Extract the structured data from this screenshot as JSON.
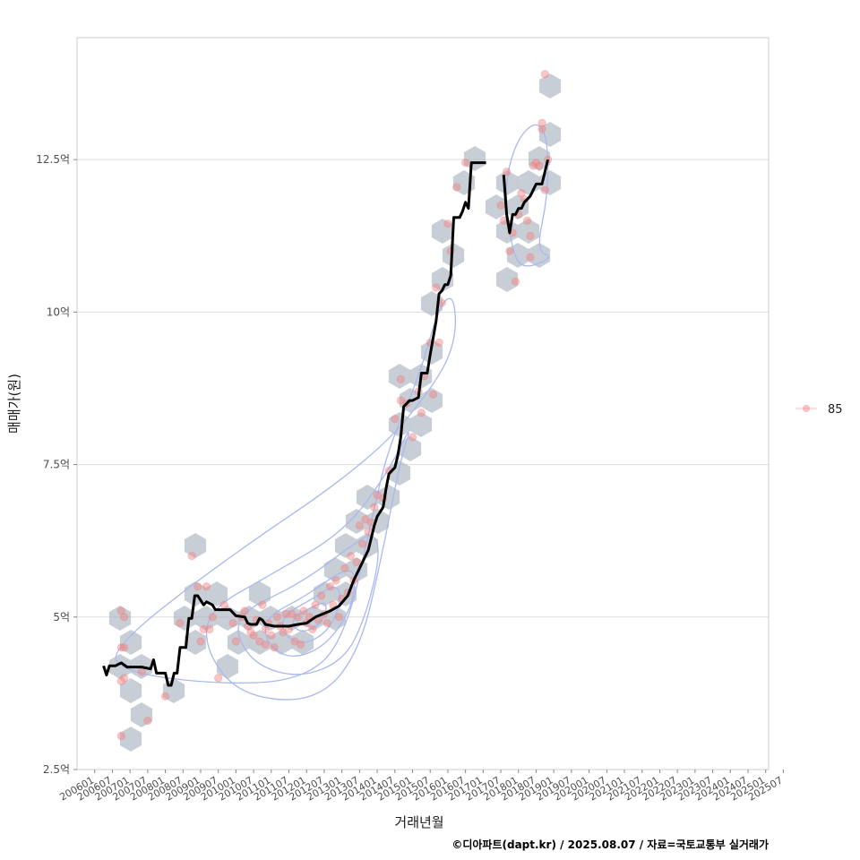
{
  "chart_data": {
    "type": "scatter",
    "xlabel": "거래년월",
    "ylabel": "매매가(원)",
    "caption": "©디아파트(dapt.kr) / 2025.08.07 / 자료=국토교통부 실거래가",
    "y_unit": "억원",
    "ylim": [
      2.5,
      14.5
    ],
    "xlim_months": [
      -6,
      229
    ],
    "y_ticks": [
      {
        "value": 2.5,
        "label": "2.5억"
      },
      {
        "value": 5,
        "label": "5억"
      },
      {
        "value": 7.5,
        "label": "7.5억"
      },
      {
        "value": 10,
        "label": "10억"
      },
      {
        "value": 12.5,
        "label": "12.5억"
      }
    ],
    "x_ticks": [
      {
        "month": 0,
        "label": "200601"
      },
      {
        "month": 6,
        "label": "200607"
      },
      {
        "month": 12,
        "label": "200701"
      },
      {
        "month": 18,
        "label": "200707"
      },
      {
        "month": 24,
        "label": "200801"
      },
      {
        "month": 30,
        "label": "200807"
      },
      {
        "month": 36,
        "label": "200901"
      },
      {
        "month": 42,
        "label": "200907"
      },
      {
        "month": 48,
        "label": "201001"
      },
      {
        "month": 54,
        "label": "201007"
      },
      {
        "month": 60,
        "label": "201101"
      },
      {
        "month": 66,
        "label": "201107"
      },
      {
        "month": 72,
        "label": "201201"
      },
      {
        "month": 78,
        "label": "201207"
      },
      {
        "month": 84,
        "label": "201301"
      },
      {
        "month": 90,
        "label": "201307"
      },
      {
        "month": 96,
        "label": "201401"
      },
      {
        "month": 102,
        "label": "201407"
      },
      {
        "month": 108,
        "label": "201501"
      },
      {
        "month": 114,
        "label": "201507"
      },
      {
        "month": 120,
        "label": "201601"
      },
      {
        "month": 126,
        "label": "201607"
      },
      {
        "month": 132,
        "label": "201701"
      },
      {
        "month": 138,
        "label": "201707"
      },
      {
        "month": 144,
        "label": "201801"
      },
      {
        "month": 150,
        "label": "201807"
      },
      {
        "month": 156,
        "label": "201901"
      },
      {
        "month": 162,
        "label": "201907"
      },
      {
        "month": 168,
        "label": "202001"
      },
      {
        "month": 174,
        "label": "202007"
      },
      {
        "month": 180,
        "label": "202101"
      },
      {
        "month": 186,
        "label": "202107"
      },
      {
        "month": 192,
        "label": "202201"
      },
      {
        "month": 198,
        "label": "202207"
      },
      {
        "month": 204,
        "label": "202301"
      },
      {
        "month": 210,
        "label": "202307"
      },
      {
        "month": 216,
        "label": "202401"
      },
      {
        "month": 222,
        "label": "202407"
      },
      {
        "month": 228,
        "label": "202501"
      },
      {
        "month": 234,
        "label": "202507"
      }
    ],
    "legend": [
      {
        "name": "85",
        "color": "#f08080"
      }
    ],
    "colors": {
      "point": "#f08080",
      "hex": "#aab3be",
      "contour": "#a9b8f0",
      "trend": "#000000",
      "grid": "#dddddd",
      "frame": "#cccccc"
    },
    "series": [
      {
        "name": "85",
        "points": [
          [
            9,
            5.1
          ],
          [
            9,
            4.5
          ],
          [
            9,
            3.95
          ],
          [
            9,
            3.05
          ],
          [
            10,
            4.5
          ],
          [
            10,
            5.0
          ],
          [
            10,
            4.0
          ],
          [
            16,
            4.1
          ],
          [
            18,
            3.3
          ],
          [
            24,
            3.7
          ],
          [
            29,
            4.9
          ],
          [
            33,
            6.0
          ],
          [
            35,
            5.5
          ],
          [
            36,
            4.6
          ],
          [
            37,
            4.8
          ],
          [
            38,
            5.5
          ],
          [
            39,
            4.8
          ],
          [
            40,
            5.0
          ],
          [
            42,
            4.0
          ],
          [
            44,
            5.2
          ],
          [
            47,
            4.9
          ],
          [
            48,
            4.6
          ],
          [
            50,
            5.0
          ],
          [
            51,
            5.1
          ],
          [
            52,
            4.85
          ],
          [
            53,
            4.75
          ],
          [
            54,
            4.7
          ],
          [
            55,
            4.95
          ],
          [
            56,
            4.6
          ],
          [
            57,
            5.2
          ],
          [
            58,
            4.8
          ],
          [
            58,
            4.55
          ],
          [
            59,
            4.9
          ],
          [
            60,
            4.7
          ],
          [
            61,
            4.5
          ],
          [
            62,
            5.0
          ],
          [
            63,
            4.85
          ],
          [
            64,
            4.75
          ],
          [
            65,
            5.05
          ],
          [
            66,
            4.8
          ],
          [
            67,
            5.05
          ],
          [
            68,
            4.6
          ],
          [
            69,
            5.0
          ],
          [
            70,
            4.55
          ],
          [
            71,
            5.1
          ],
          [
            72,
            4.9
          ],
          [
            73,
            5.0
          ],
          [
            74,
            4.8
          ],
          [
            75,
            5.2
          ],
          [
            76,
            4.95
          ],
          [
            77,
            5.35
          ],
          [
            78,
            5.05
          ],
          [
            79,
            4.9
          ],
          [
            80,
            5.5
          ],
          [
            81,
            5.2
          ],
          [
            82,
            5.6
          ],
          [
            83,
            5.0
          ],
          [
            84,
            5.3
          ],
          [
            85,
            5.8
          ],
          [
            86,
            5.4
          ],
          [
            87,
            6.0
          ],
          [
            88,
            5.6
          ],
          [
            89,
            5.9
          ],
          [
            90,
            6.5
          ],
          [
            91,
            6.2
          ],
          [
            92,
            6.6
          ],
          [
            93,
            6.4
          ],
          [
            94,
            6.55
          ],
          [
            95,
            6.8
          ],
          [
            96,
            7.0
          ],
          [
            98,
            6.95
          ],
          [
            100,
            7.4
          ],
          [
            102,
            8.25
          ],
          [
            104,
            8.9
          ],
          [
            104,
            8.55
          ],
          [
            106,
            8.5
          ],
          [
            108,
            7.95
          ],
          [
            110,
            8.7
          ],
          [
            111,
            8.35
          ],
          [
            112,
            8.95
          ],
          [
            114,
            9.5
          ],
          [
            115,
            8.65
          ],
          [
            116,
            10.4
          ],
          [
            117,
            9.5
          ],
          [
            118,
            10.15
          ],
          [
            120,
            11.45
          ],
          [
            121,
            11.0
          ],
          [
            123,
            12.05
          ],
          [
            126,
            12.45
          ],
          [
            138,
            11.75
          ],
          [
            139,
            11.5
          ],
          [
            140,
            12.3
          ],
          [
            141,
            11.0
          ],
          [
            142,
            11.3
          ],
          [
            143,
            10.5
          ],
          [
            144,
            11.6
          ],
          [
            145,
            11.95
          ],
          [
            146,
            11.85
          ],
          [
            147,
            11.5
          ],
          [
            148,
            10.9
          ],
          [
            148,
            11.25
          ],
          [
            149,
            12.4
          ],
          [
            150,
            12.45
          ],
          [
            151,
            12.4
          ],
          [
            152,
            13.1
          ],
          [
            152,
            13.0
          ],
          [
            153,
            12.0
          ],
          [
            153,
            13.9
          ],
          [
            154,
            12.5
          ]
        ]
      }
    ],
    "trend_line": [
      [
        3,
        4.2
      ],
      [
        4,
        4.05
      ],
      [
        5,
        4.2
      ],
      [
        7,
        4.2
      ],
      [
        9,
        4.25
      ],
      [
        11,
        4.18
      ],
      [
        16,
        4.18
      ],
      [
        19,
        4.15
      ],
      [
        20,
        4.3
      ],
      [
        21,
        4.08
      ],
      [
        24,
        4.08
      ],
      [
        25,
        3.88
      ],
      [
        26,
        3.88
      ],
      [
        27,
        4.08
      ],
      [
        28,
        4.08
      ],
      [
        29,
        4.5
      ],
      [
        31,
        4.5
      ],
      [
        32,
        4.98
      ],
      [
        33,
        4.98
      ],
      [
        34,
        5.35
      ],
      [
        35,
        5.35
      ],
      [
        37,
        5.2
      ],
      [
        38,
        5.25
      ],
      [
        40,
        5.2
      ],
      [
        41,
        5.12
      ],
      [
        46,
        5.12
      ],
      [
        48,
        5.02
      ],
      [
        51,
        5.0
      ],
      [
        52,
        4.9
      ],
      [
        53,
        4.88
      ],
      [
        55,
        4.88
      ],
      [
        56,
        4.98
      ],
      [
        57,
        4.95
      ],
      [
        58,
        4.88
      ],
      [
        61,
        4.85
      ],
      [
        66,
        4.85
      ],
      [
        69,
        4.88
      ],
      [
        72,
        4.9
      ],
      [
        75,
        5.0
      ],
      [
        80,
        5.1
      ],
      [
        83,
        5.18
      ],
      [
        86,
        5.35
      ],
      [
        88,
        5.6
      ],
      [
        91,
        5.9
      ],
      [
        93,
        6.1
      ],
      [
        95,
        6.5
      ],
      [
        96,
        6.65
      ],
      [
        98,
        6.8
      ],
      [
        99,
        7.1
      ],
      [
        100,
        7.35
      ],
      [
        101,
        7.4
      ],
      [
        102,
        7.45
      ],
      [
        103,
        7.65
      ],
      [
        104,
        7.95
      ],
      [
        105,
        8.45
      ],
      [
        107,
        8.55
      ],
      [
        108,
        8.55
      ],
      [
        110,
        8.6
      ],
      [
        111,
        9.0
      ],
      [
        113,
        9.0
      ],
      [
        114,
        9.3
      ],
      [
        116,
        9.85
      ],
      [
        117,
        10.3
      ],
      [
        118,
        10.35
      ],
      [
        119,
        10.45
      ],
      [
        120,
        10.45
      ],
      [
        121,
        10.6
      ],
      [
        122,
        11.55
      ],
      [
        124,
        11.55
      ],
      [
        125,
        11.65
      ],
      [
        126,
        11.8
      ],
      [
        127,
        11.7
      ],
      [
        128,
        12.45
      ],
      [
        133,
        12.45
      ],
      null,
      [
        139,
        12.25
      ],
      [
        140,
        11.6
      ],
      [
        141,
        11.3
      ],
      [
        142,
        11.6
      ],
      [
        143,
        11.6
      ],
      [
        144,
        11.7
      ],
      [
        145,
        11.7
      ],
      [
        146,
        11.8
      ],
      [
        147,
        11.85
      ],
      [
        148,
        11.9
      ],
      [
        149,
        12.0
      ],
      [
        150,
        12.1
      ],
      [
        152,
        12.1
      ],
      [
        153,
        12.3
      ],
      [
        154,
        12.5
      ]
    ]
  }
}
